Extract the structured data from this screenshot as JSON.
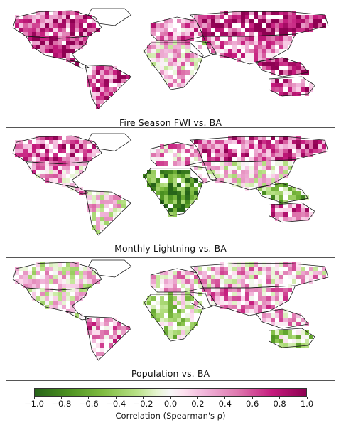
{
  "panels": [
    {
      "title": "Fire Season FWI vs. BA",
      "pattern": "fwi",
      "regions": [
        {
          "name": "north-america",
          "value": 0.7
        },
        {
          "name": "canada",
          "value": 0.6
        },
        {
          "name": "south-america",
          "value": 0.6
        },
        {
          "name": "europe",
          "value": 0.4
        },
        {
          "name": "russia",
          "value": 0.75
        },
        {
          "name": "africa",
          "value": 0.2
        },
        {
          "name": "asia",
          "value": 0.4
        },
        {
          "name": "southeast-asia",
          "value": 0.85
        },
        {
          "name": "australia",
          "value": 0.6
        }
      ]
    },
    {
      "title": "Monthly Lightning vs. BA",
      "pattern": "lightning",
      "regions": [
        {
          "name": "north-america",
          "value": 0.3
        },
        {
          "name": "canada",
          "value": 0.6
        },
        {
          "name": "south-america",
          "value": 0.1
        },
        {
          "name": "europe",
          "value": 0.3
        },
        {
          "name": "russia",
          "value": 0.6
        },
        {
          "name": "africa",
          "value": -0.7
        },
        {
          "name": "asia",
          "value": 0.1
        },
        {
          "name": "southeast-asia",
          "value": -0.4
        },
        {
          "name": "australia",
          "value": 0.5
        }
      ]
    },
    {
      "title": "Population vs. BA",
      "pattern": "population",
      "regions": [
        {
          "name": "north-america",
          "value": 0.05
        },
        {
          "name": "canada",
          "value": 0.05
        },
        {
          "name": "south-america",
          "value": 0.4
        },
        {
          "name": "europe",
          "value": 0.2
        },
        {
          "name": "russia",
          "value": 0.2
        },
        {
          "name": "africa",
          "value": -0.2
        },
        {
          "name": "asia",
          "value": 0.3
        },
        {
          "name": "southeast-asia",
          "value": 0.2
        },
        {
          "name": "australia",
          "value": -0.3
        }
      ]
    }
  ],
  "colorbar": {
    "label": "Correlation (Spearman's ρ)",
    "min": -1.0,
    "max": 1.0,
    "ticks": [
      "−1.0",
      "−0.8",
      "−0.6",
      "−0.4",
      "−0.2",
      "0.0",
      "0.2",
      "0.4",
      "0.6",
      "0.8",
      "1.0"
    ],
    "colormap": "PiYG"
  }
}
